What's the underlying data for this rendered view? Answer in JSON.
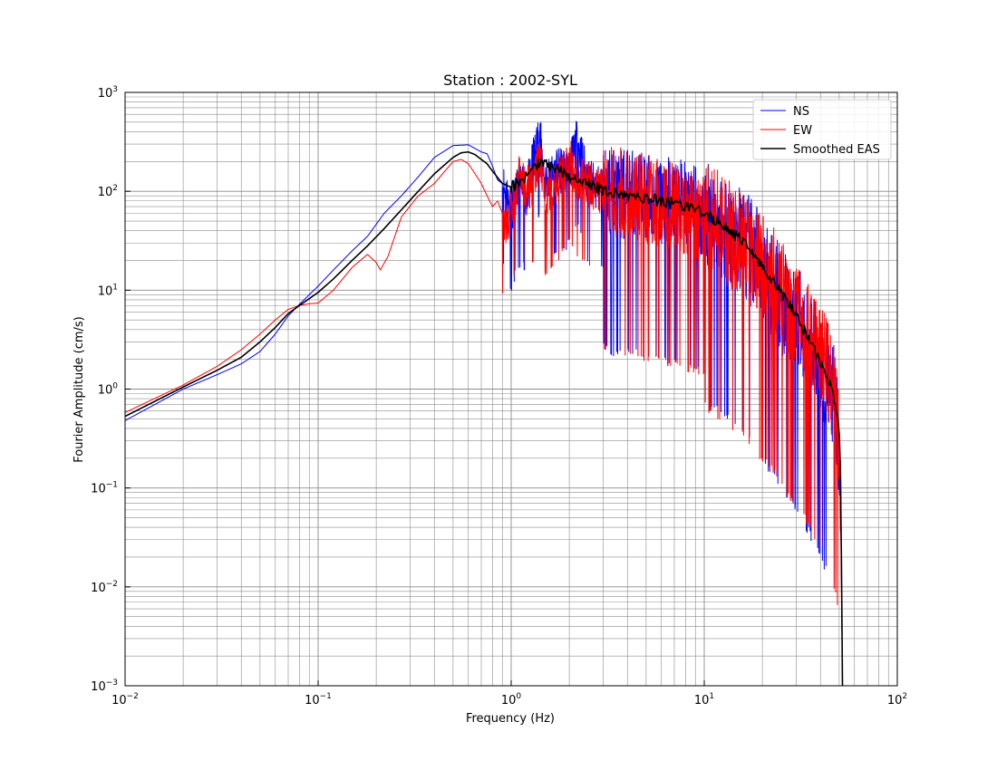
{
  "chart_data": {
    "type": "line",
    "title": "Station : 2002-SYL",
    "xlabel": "Frequency (Hz)",
    "ylabel": "Fourier Amplitude (cm/s)",
    "xscale": "log",
    "yscale": "log",
    "xlim": [
      0.01,
      100
    ],
    "ylim": [
      0.001,
      1000
    ],
    "grid": "major and minor",
    "legend_placement": "top-right",
    "x_ticks": [
      {
        "value": 0.01,
        "base": "10",
        "exp": "−2"
      },
      {
        "value": 0.1,
        "base": "10",
        "exp": "−1"
      },
      {
        "value": 1,
        "base": "10",
        "exp": "0"
      },
      {
        "value": 10,
        "base": "10",
        "exp": "1"
      },
      {
        "value": 100,
        "base": "10",
        "exp": "2"
      }
    ],
    "y_ticks": [
      {
        "value": 0.001,
        "base": "10",
        "exp": "−3"
      },
      {
        "value": 0.01,
        "base": "10",
        "exp": "−2"
      },
      {
        "value": 0.1,
        "base": "10",
        "exp": "−1"
      },
      {
        "value": 1,
        "base": "10",
        "exp": "0"
      },
      {
        "value": 10,
        "base": "10",
        "exp": "1"
      },
      {
        "value": 100,
        "base": "10",
        "exp": "2"
      },
      {
        "value": 1000,
        "base": "10",
        "exp": "3"
      }
    ],
    "series": [
      {
        "name": "NS",
        "color": "#0000ff",
        "linewidth": 1,
        "x": [
          0.01,
          0.02,
          0.03,
          0.04,
          0.05,
          0.06,
          0.07,
          0.08,
          0.1,
          0.12,
          0.15,
          0.18,
          0.22,
          0.27,
          0.33,
          0.4,
          0.5,
          0.6,
          0.7,
          0.75,
          0.8,
          0.85,
          0.9,
          0.95,
          1.0,
          1.1,
          1.2,
          1.3,
          1.4,
          1.5,
          1.7,
          2.0,
          2.2,
          2.5,
          3.0,
          3.5,
          4.0,
          4.5,
          5.0,
          6.0,
          7.0,
          8.0,
          9.0,
          10.0,
          12.0,
          14.0,
          16.0,
          18.0,
          20.0,
          23.0,
          26.0,
          30.0,
          34.0,
          38.0,
          42.0,
          46.0,
          48.0,
          50.0,
          51.0,
          52.0
        ],
        "y": [
          0.48,
          1.0,
          1.4,
          1.8,
          2.4,
          3.6,
          5.5,
          7.2,
          11,
          16,
          25,
          35,
          60,
          90,
          140,
          220,
          290,
          295,
          250,
          240,
          180,
          130,
          120,
          90,
          60,
          110,
          90,
          200,
          380,
          120,
          150,
          160,
          320,
          120,
          100,
          80,
          90,
          85,
          80,
          75,
          70,
          65,
          60,
          55,
          45,
          35,
          28,
          20,
          14,
          10,
          6,
          4.5,
          3,
          1.8,
          1.2,
          0.9,
          0.55,
          0.25,
          0.05,
          0.001
        ]
      },
      {
        "name": "EW",
        "color": "#ff0000",
        "linewidth": 1,
        "x": [
          0.01,
          0.02,
          0.03,
          0.04,
          0.05,
          0.06,
          0.07,
          0.08,
          0.09,
          0.1,
          0.12,
          0.15,
          0.18,
          0.2,
          0.21,
          0.23,
          0.27,
          0.33,
          0.4,
          0.5,
          0.55,
          0.6,
          0.65,
          0.7,
          0.75,
          0.8,
          0.85,
          0.9,
          0.95,
          1.0,
          1.1,
          1.2,
          1.3,
          1.4,
          1.5,
          1.7,
          2.0,
          2.2,
          2.5,
          3.0,
          3.5,
          4.0,
          4.5,
          5.0,
          6.0,
          7.0,
          8.0,
          9.0,
          10.0,
          12.0,
          14.0,
          16.0,
          18.0,
          20.0,
          23.0,
          26.0,
          30.0,
          34.0,
          38.0,
          42.0,
          46.0,
          48.0,
          50.0,
          51.0,
          52.0
        ],
        "y": [
          0.58,
          1.1,
          1.7,
          2.5,
          3.6,
          5.0,
          6.4,
          7.0,
          7.3,
          7.4,
          10,
          17,
          23,
          19,
          16,
          22,
          55,
          90,
          120,
          200,
          210,
          190,
          150,
          120,
          90,
          70,
          80,
          60,
          45,
          70,
          130,
          100,
          120,
          200,
          90,
          110,
          200,
          130,
          110,
          95,
          90,
          85,
          80,
          75,
          70,
          65,
          60,
          55,
          50,
          40,
          32,
          26,
          20,
          15,
          11,
          7.5,
          5,
          3.5,
          2.2,
          1.5,
          1.0,
          0.6,
          0.35,
          0.05,
          0.001
        ]
      },
      {
        "name": "Smoothed EAS",
        "color": "#000000",
        "linewidth": 1.6,
        "x": [
          0.01,
          0.02,
          0.03,
          0.04,
          0.05,
          0.06,
          0.07,
          0.08,
          0.1,
          0.12,
          0.15,
          0.18,
          0.22,
          0.27,
          0.33,
          0.4,
          0.5,
          0.55,
          0.6,
          0.65,
          0.7,
          0.75,
          0.8,
          0.9,
          1.0,
          1.2,
          1.4,
          1.7,
          2.0,
          2.5,
          3.0,
          4.0,
          5.0,
          6.0,
          7.0,
          8.0,
          10.0,
          12.0,
          14.0,
          16.0,
          18.0,
          20.0,
          23.0,
          26.0,
          30.0,
          34.0,
          38.0,
          42.0,
          46.0,
          48.0,
          50.0,
          51.0,
          52.0
        ],
        "y": [
          0.53,
          1.05,
          1.55,
          2.1,
          3.0,
          4.2,
          5.8,
          7.0,
          9.5,
          13,
          20,
          28,
          42,
          65,
          100,
          150,
          220,
          245,
          250,
          235,
          210,
          190,
          160,
          120,
          110,
          140,
          200,
          170,
          140,
          120,
          100,
          90,
          85,
          80,
          75,
          70,
          60,
          48,
          38,
          30,
          23,
          17,
          12,
          8.5,
          5.5,
          3.5,
          2.2,
          1.5,
          1.0,
          0.7,
          0.4,
          0.1,
          0.001
        ]
      }
    ]
  }
}
